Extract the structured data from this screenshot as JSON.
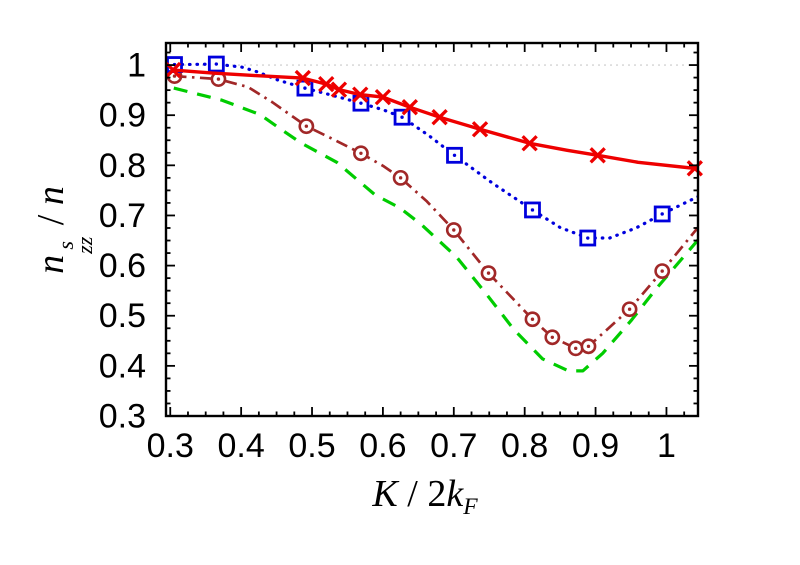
{
  "figure": {
    "background": "#ffffff",
    "frame_color": "#000000",
    "tick_label_color": "#000000"
  },
  "chart_data": {
    "type": "line",
    "title": "",
    "xlabel": "K / 2k_F",
    "ylabel": "n^s_zz / n",
    "xlabel_parts": {
      "var1": "K",
      "sep": " / ",
      "coef": "2",
      "var2": "k",
      "sub": "F"
    },
    "ylabel_parts": {
      "base": "n",
      "sup": "s",
      "sub": "zz",
      "sep": " / ",
      "tail": "n"
    },
    "xlim": [
      0.294,
      1.0445
    ],
    "ylim": [
      0.3,
      1.044
    ],
    "x_ticks": {
      "values": [
        0.3,
        0.4,
        0.5,
        0.6,
        0.7,
        0.8,
        0.9,
        1.0
      ],
      "labels": [
        "0.3",
        "0.4",
        "0.5",
        "0.6",
        "0.7",
        "0.8",
        "0.9",
        "1"
      ]
    },
    "y_ticks": {
      "values": [
        0.3,
        0.4,
        0.5,
        0.6,
        0.7,
        0.8,
        0.9,
        1.0
      ],
      "labels": [
        "0.3",
        "0.4",
        "0.5",
        "0.6",
        "0.7",
        "0.8",
        "0.9",
        "1"
      ]
    },
    "minor_tick_step": 0.025,
    "grid": {
      "y_values": [
        1.0
      ],
      "color": "#d4d4d4",
      "style": "dotted"
    },
    "legend": "none",
    "series": [
      {
        "name": "green-dashed",
        "color": "#00cc00",
        "line_style": "dashed",
        "marker": "none",
        "line": [
          [
            0.305,
            0.954
          ],
          [
            0.373,
            0.93
          ],
          [
            0.427,
            0.901
          ],
          [
            0.455,
            0.873
          ],
          [
            0.484,
            0.845
          ],
          [
            0.535,
            0.806
          ],
          [
            0.589,
            0.741
          ],
          [
            0.624,
            0.715
          ],
          [
            0.655,
            0.681
          ],
          [
            0.704,
            0.617
          ],
          [
            0.745,
            0.545
          ],
          [
            0.785,
            0.472
          ],
          [
            0.825,
            0.414
          ],
          [
            0.862,
            0.39
          ],
          [
            0.882,
            0.39
          ],
          [
            0.91,
            0.425
          ],
          [
            0.95,
            0.49
          ],
          [
            0.985,
            0.553
          ],
          [
            1.045,
            0.652
          ]
        ],
        "markers": []
      },
      {
        "name": "darkred-dashdot-circle",
        "color": "#a12828",
        "line_style": "dashdot",
        "marker": "circle-dot",
        "line": [
          [
            0.306,
            0.978
          ],
          [
            0.368,
            0.972
          ],
          [
            0.41,
            0.956
          ],
          [
            0.444,
            0.926
          ],
          [
            0.492,
            0.878
          ],
          [
            0.53,
            0.852
          ],
          [
            0.569,
            0.824
          ],
          [
            0.6,
            0.799
          ],
          [
            0.625,
            0.775
          ],
          [
            0.662,
            0.728
          ],
          [
            0.7,
            0.671
          ],
          [
            0.749,
            0.585
          ],
          [
            0.811,
            0.493
          ],
          [
            0.839,
            0.457
          ],
          [
            0.872,
            0.435
          ],
          [
            0.89,
            0.439
          ],
          [
            0.948,
            0.513
          ],
          [
            0.994,
            0.589
          ],
          [
            1.045,
            0.677
          ]
        ],
        "markers": [
          [
            0.306,
            0.978
          ],
          [
            0.368,
            0.972
          ],
          [
            0.492,
            0.878
          ],
          [
            0.569,
            0.824
          ],
          [
            0.625,
            0.775
          ],
          [
            0.7,
            0.671
          ],
          [
            0.749,
            0.585
          ],
          [
            0.811,
            0.493
          ],
          [
            0.839,
            0.457
          ],
          [
            0.872,
            0.435
          ],
          [
            0.89,
            0.439
          ],
          [
            0.948,
            0.513
          ],
          [
            0.994,
            0.589
          ]
        ]
      },
      {
        "name": "blue-dotted-square",
        "color": "#0000dd",
        "line_style": "dotted",
        "marker": "square-dot",
        "line": [
          [
            0.306,
            1.001
          ],
          [
            0.365,
            1.002
          ],
          [
            0.401,
            0.996
          ],
          [
            0.424,
            0.986
          ],
          [
            0.452,
            0.97
          ],
          [
            0.49,
            0.954
          ],
          [
            0.53,
            0.939
          ],
          [
            0.569,
            0.924
          ],
          [
            0.6,
            0.911
          ],
          [
            0.627,
            0.896
          ],
          [
            0.665,
            0.859
          ],
          [
            0.701,
            0.82
          ],
          [
            0.755,
            0.764
          ],
          [
            0.811,
            0.711
          ],
          [
            0.85,
            0.676
          ],
          [
            0.889,
            0.655
          ],
          [
            0.92,
            0.655
          ],
          [
            0.957,
            0.675
          ],
          [
            0.994,
            0.703
          ],
          [
            1.045,
            0.738
          ]
        ],
        "markers": [
          [
            0.306,
            1.001
          ],
          [
            0.365,
            1.002
          ],
          [
            0.49,
            0.954
          ],
          [
            0.569,
            0.924
          ],
          [
            0.627,
            0.896
          ],
          [
            0.701,
            0.82
          ],
          [
            0.811,
            0.711
          ],
          [
            0.889,
            0.655
          ],
          [
            0.994,
            0.703
          ]
        ]
      },
      {
        "name": "red-solid-cross",
        "color": "#ee0000",
        "line_style": "solid",
        "marker": "x",
        "line": [
          [
            0.304,
            0.99
          ],
          [
            0.36,
            0.984
          ],
          [
            0.42,
            0.979
          ],
          [
            0.487,
            0.974
          ],
          [
            0.52,
            0.962
          ],
          [
            0.538,
            0.951
          ],
          [
            0.568,
            0.941
          ],
          [
            0.6,
            0.936
          ],
          [
            0.638,
            0.916
          ],
          [
            0.68,
            0.896
          ],
          [
            0.737,
            0.872
          ],
          [
            0.807,
            0.844
          ],
          [
            0.86,
            0.83
          ],
          [
            0.903,
            0.82
          ],
          [
            0.96,
            0.806
          ],
          [
            1.045,
            0.793
          ]
        ],
        "markers": [
          [
            0.304,
            0.99
          ],
          [
            0.487,
            0.974
          ],
          [
            0.52,
            0.962
          ],
          [
            0.538,
            0.951
          ],
          [
            0.568,
            0.941
          ],
          [
            0.6,
            0.936
          ],
          [
            0.638,
            0.916
          ],
          [
            0.68,
            0.896
          ],
          [
            0.737,
            0.872
          ],
          [
            0.807,
            0.844
          ],
          [
            0.903,
            0.82
          ],
          [
            1.04,
            0.794
          ]
        ]
      }
    ]
  }
}
